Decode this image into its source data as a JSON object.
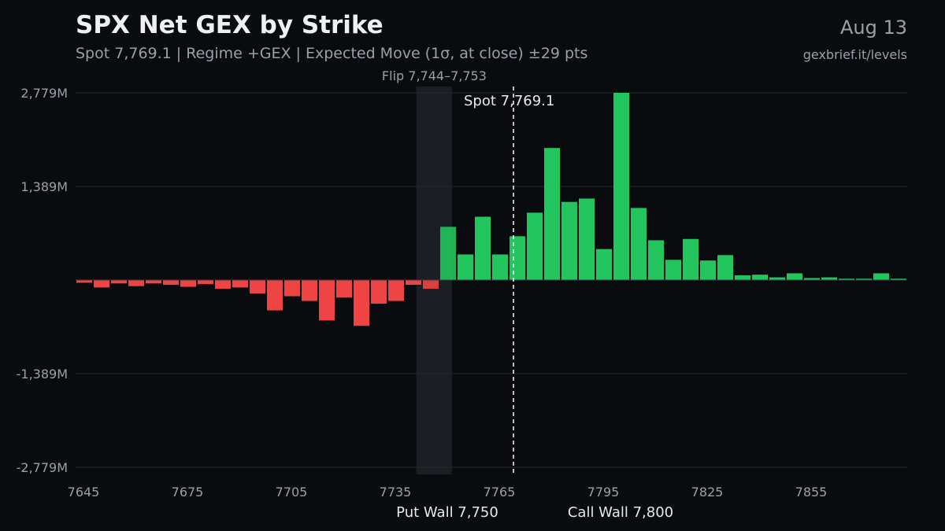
{
  "header": {
    "title": "SPX Net GEX by Strike",
    "subtitle": "Spot 7,769.1 | Regime +GEX | Expected Move (1σ, at close) ±29 pts",
    "date": "Aug 13",
    "source": "gexbrief.it/levels"
  },
  "colors": {
    "background": "#0a0b0e",
    "positive": "#22c55e",
    "negative": "#ef4444",
    "grid": "#262a31",
    "flip_zone": "#1b1e23",
    "text": "#e6e8ec",
    "muted": "#9aa0a8"
  },
  "chart_data": {
    "type": "bar",
    "title": "SPX Net GEX by Strike",
    "xlabel": "",
    "ylabel": "",
    "strike_step": 5,
    "x": [
      7645,
      7650,
      7655,
      7660,
      7665,
      7670,
      7675,
      7680,
      7685,
      7690,
      7695,
      7700,
      7705,
      7710,
      7715,
      7720,
      7725,
      7730,
      7735,
      7740,
      7745,
      7750,
      7755,
      7760,
      7765,
      7770,
      7775,
      7780,
      7785,
      7790,
      7795,
      7800,
      7805,
      7810,
      7815,
      7820,
      7825,
      7830,
      7835,
      7840,
      7845,
      7850,
      7855,
      7860,
      7865,
      7870,
      7875,
      7880
    ],
    "values": [
      -40,
      -110,
      -50,
      -90,
      -50,
      -70,
      -100,
      -60,
      -130,
      -110,
      -200,
      -450,
      -240,
      -310,
      -600,
      -260,
      -680,
      -350,
      -310,
      -70,
      -130,
      790,
      380,
      940,
      380,
      650,
      1000,
      1960,
      1160,
      1210,
      460,
      2779,
      1070,
      590,
      300,
      610,
      290,
      370,
      70,
      80,
      40,
      100,
      30,
      40,
      20,
      20,
      100,
      20
    ],
    "y_unit": "M",
    "y_ticks": [
      "2,779M",
      "1,389M",
      "-1,389M",
      "-2,779M"
    ],
    "y_tick_values": [
      2779,
      1389,
      -1389,
      -2779
    ],
    "ylim": [
      -2779,
      2779
    ],
    "x_tick_labels": [
      "7645",
      "7675",
      "7705",
      "7735",
      "7765",
      "7795",
      "7825",
      "7855"
    ],
    "x_tick_values": [
      7645,
      7675,
      7705,
      7735,
      7765,
      7795,
      7825,
      7855
    ],
    "grid": true,
    "flip_zone": {
      "label": "Flip 7,744–7,753",
      "from": 7744,
      "to": 7753
    },
    "spot": {
      "label": "Spot 7,769.1",
      "value": 7769.1
    },
    "walls": [
      {
        "label": "Put Wall 7,750",
        "value": 7750
      },
      {
        "label": "Call Wall 7,800",
        "value": 7800
      }
    ]
  }
}
